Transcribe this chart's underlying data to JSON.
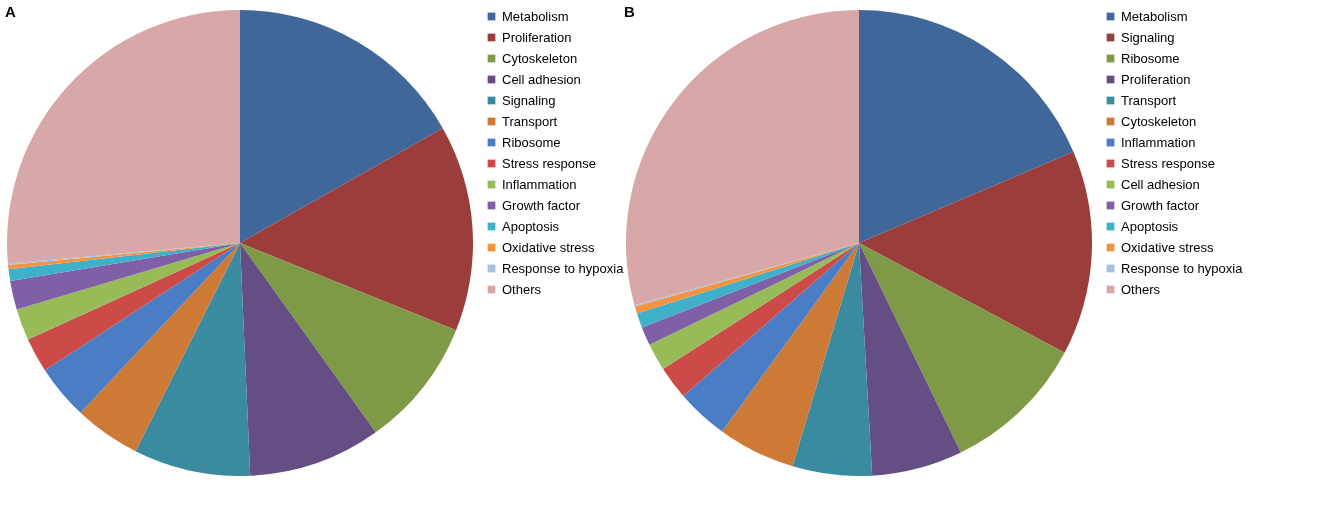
{
  "chart_data": [
    {
      "type": "pie",
      "title": "A",
      "legend": "right",
      "categories": [
        "Metabolism",
        "Proliferation",
        "Cytoskeleton",
        "Cell adhesion",
        "Signaling",
        "Transport",
        "Ribosome",
        "Stress response",
        "Inflammation",
        "Growth factor",
        "Apoptosis",
        "Oxidative stress",
        "Response to hypoxia",
        "Others"
      ],
      "values": [
        16.8,
        14.3,
        9.0,
        9.2,
        8.1,
        4.6,
        3.8,
        2.4,
        2.2,
        2.0,
        0.8,
        0.3,
        0.1,
        26.4
      ],
      "colors": [
        "#3f679a",
        "#9b3d3b",
        "#7e9a46",
        "#654e83",
        "#3a8ba0",
        "#cc7a36",
        "#4a7dc4",
        "#cc4b48",
        "#97bb57",
        "#7f5fa6",
        "#3fb0c9",
        "#f5943e",
        "#a5bfdf",
        "#d8a7a8"
      ]
    },
    {
      "type": "pie",
      "title": "B",
      "legend": "right",
      "categories": [
        "Metabolism",
        "Signaling",
        "Ribosome",
        "Proliferation",
        "Transport",
        "Cytoskeleton",
        "Inflammation",
        "Stress response",
        "Cell adhesion",
        "Growth factor",
        "Apoptosis",
        "Oxidative stress",
        "Response to hypoxia",
        "Others"
      ],
      "values": [
        18.6,
        14.2,
        10.0,
        6.3,
        5.5,
        5.4,
        3.6,
        2.3,
        1.9,
        1.3,
        1.0,
        0.5,
        0.1,
        29.3
      ],
      "colors": [
        "#3f679a",
        "#9b3d3b",
        "#7e9a46",
        "#654e83",
        "#3a8ba0",
        "#cc7a36",
        "#4a7dc4",
        "#cc4b48",
        "#97bb57",
        "#7f5fa6",
        "#3fb0c9",
        "#f5943e",
        "#a5bfdf",
        "#d8a7a8"
      ]
    }
  ]
}
